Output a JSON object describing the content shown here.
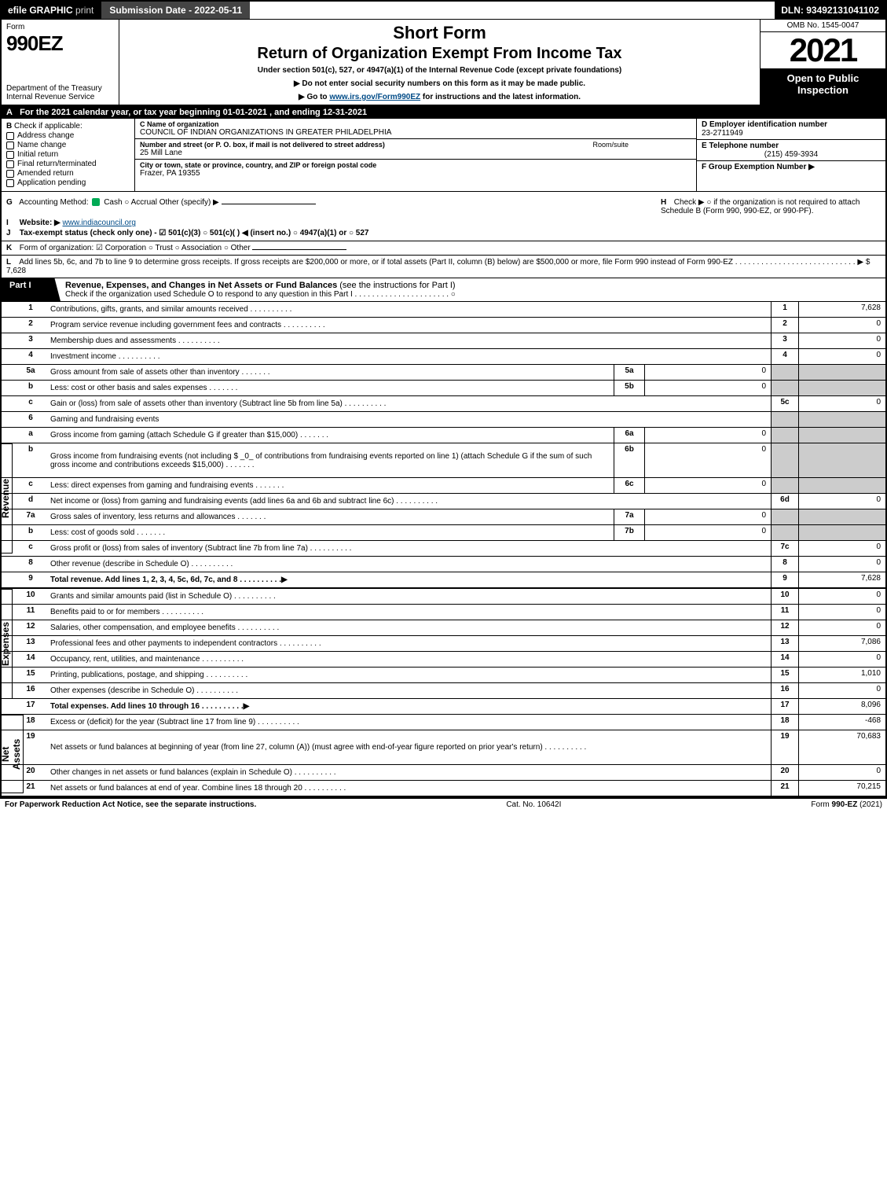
{
  "topbar": {
    "efile": "efile GRAPHIC",
    "print": "print",
    "submission": "Submission Date - 2022-05-11",
    "dln": "DLN: 93492131041102"
  },
  "header": {
    "form_label": "Form",
    "form_num": "990EZ",
    "dept": "Department of the Treasury\nInternal Revenue Service",
    "short_form": "Short Form",
    "return_title": "Return of Organization Exempt From Income Tax",
    "under_section": "Under section 501(c), 527, or 4947(a)(1) of the Internal Revenue Code (except private foundations)",
    "note1": "Do not enter social security numbers on this form as it may be made public.",
    "note2_pre": "Go to ",
    "note2_link": "www.irs.gov/Form990EZ",
    "note2_post": " for instructions and the latest information.",
    "omb": "OMB No. 1545-0047",
    "year": "2021",
    "open": "Open to Public Inspection"
  },
  "section_a": "For the 2021 calendar year, or tax year beginning 01-01-2021 , and ending 12-31-2021",
  "col_b": {
    "header": "Check if applicable:",
    "items": [
      "Address change",
      "Name change",
      "Initial return",
      "Final return/terminated",
      "Amended return",
      "Application pending"
    ]
  },
  "col_c": {
    "name_label": "C Name of organization",
    "name": "COUNCIL OF INDIAN ORGANIZATIONS IN GREATER PHILADELPHIA",
    "street_label": "Number and street (or P. O. box, if mail is not delivered to street address)",
    "room_label": "Room/suite",
    "street": "25 Mill Lane",
    "city_label": "City or town, state or province, country, and ZIP or foreign postal code",
    "city": "Frazer, PA  19355"
  },
  "col_d": {
    "ein_label": "D Employer identification number",
    "ein": "23-2711949",
    "phone_label": "E Telephone number",
    "phone": "(215) 459-3934",
    "group_label": "F Group Exemption Number  ▶"
  },
  "meta": {
    "g": "Accounting Method:",
    "g_opts": "Cash   ○ Accrual   Other (specify) ▶",
    "h": "Check ▶  ○  if the organization is not required to attach Schedule B (Form 990, 990-EZ, or 990-PF).",
    "i_label": "Website: ▶",
    "i_val": "www.indiacouncil.org",
    "j": "Tax-exempt status (check only one) -  ☑ 501(c)(3)  ○ 501(c)(  ) ◀ (insert no.)  ○ 4947(a)(1) or  ○ 527"
  },
  "line_k": "Form of organization:  ☑ Corporation  ○ Trust  ○ Association  ○ Other",
  "line_l": "Add lines 5b, 6c, and 7b to line 9 to determine gross receipts. If gross receipts are $200,000 or more, or if total assets (Part II, column (B) below) are $500,000 or more, file Form 990 instead of Form 990-EZ .  .  .  .  .  .  .  .  .  .  .  .  .  .  .  .  .  .  .  .  .  .  .  .  .  .  .  .  ▶ $ 7,628",
  "part1": {
    "tab": "Part I",
    "title": "Revenue, Expenses, and Changes in Net Assets or Fund Balances",
    "sub": "(see the instructions for Part I)",
    "check": "Check if the organization used Schedule O to respond to any question in this Part I .  .  .  .  .  .  .  .  .  .  .  .  .  .  .  .  .  .  .  .  .  . ○"
  },
  "revenue": [
    {
      "n": "1",
      "desc": "Contributions, gifts, grants, and similar amounts received",
      "rn": "1",
      "rv": "7,628"
    },
    {
      "n": "2",
      "desc": "Program service revenue including government fees and contracts",
      "rn": "2",
      "rv": "0"
    },
    {
      "n": "3",
      "desc": "Membership dues and assessments",
      "rn": "3",
      "rv": "0"
    },
    {
      "n": "4",
      "desc": "Investment income",
      "rn": "4",
      "rv": "0"
    },
    {
      "n": "5a",
      "desc": "Gross amount from sale of assets other than inventory",
      "sb": "5a",
      "sv": "0",
      "grey": true
    },
    {
      "n": "b",
      "desc": "Less: cost or other basis and sales expenses",
      "sb": "5b",
      "sv": "0",
      "grey": true
    },
    {
      "n": "c",
      "desc": "Gain or (loss) from sale of assets other than inventory (Subtract line 5b from line 5a)",
      "rn": "5c",
      "rv": "0"
    },
    {
      "n": "6",
      "desc": "Gaming and fundraising events",
      "grey": true
    },
    {
      "n": "a",
      "desc": "Gross income from gaming (attach Schedule G if greater than $15,000)",
      "sb": "6a",
      "sv": "0",
      "grey": true
    },
    {
      "n": "b",
      "desc": "Gross income from fundraising events (not including $ _0_ of contributions from fundraising events reported on line 1) (attach Schedule G if the sum of such gross income and contributions exceeds $15,000)",
      "sb": "6b",
      "sv": "0",
      "grey": true,
      "tall": true
    },
    {
      "n": "c",
      "desc": "Less: direct expenses from gaming and fundraising events",
      "sb": "6c",
      "sv": "0",
      "grey": true
    },
    {
      "n": "d",
      "desc": "Net income or (loss) from gaming and fundraising events (add lines 6a and 6b and subtract line 6c)",
      "rn": "6d",
      "rv": "0"
    },
    {
      "n": "7a",
      "desc": "Gross sales of inventory, less returns and allowances",
      "sb": "7a",
      "sv": "0",
      "grey": true
    },
    {
      "n": "b",
      "desc": "Less: cost of goods sold",
      "sb": "7b",
      "sv": "0",
      "grey": true
    },
    {
      "n": "c",
      "desc": "Gross profit or (loss) from sales of inventory (Subtract line 7b from line 7a)",
      "rn": "7c",
      "rv": "0"
    },
    {
      "n": "8",
      "desc": "Other revenue (describe in Schedule O)",
      "rn": "8",
      "rv": "0"
    },
    {
      "n": "9",
      "desc": "Total revenue. Add lines 1, 2, 3, 4, 5c, 6d, 7c, and 8",
      "rn": "9",
      "rv": "7,628",
      "bold": true,
      "arrow": true
    }
  ],
  "expenses": [
    {
      "n": "10",
      "desc": "Grants and similar amounts paid (list in Schedule O)",
      "rn": "10",
      "rv": "0"
    },
    {
      "n": "11",
      "desc": "Benefits paid to or for members",
      "rn": "11",
      "rv": "0"
    },
    {
      "n": "12",
      "desc": "Salaries, other compensation, and employee benefits",
      "rn": "12",
      "rv": "0"
    },
    {
      "n": "13",
      "desc": "Professional fees and other payments to independent contractors",
      "rn": "13",
      "rv": "7,086"
    },
    {
      "n": "14",
      "desc": "Occupancy, rent, utilities, and maintenance",
      "rn": "14",
      "rv": "0"
    },
    {
      "n": "15",
      "desc": "Printing, publications, postage, and shipping",
      "rn": "15",
      "rv": "1,010"
    },
    {
      "n": "16",
      "desc": "Other expenses (describe in Schedule O)",
      "rn": "16",
      "rv": "0"
    },
    {
      "n": "17",
      "desc": "Total expenses. Add lines 10 through 16",
      "rn": "17",
      "rv": "8,096",
      "bold": true,
      "arrow": true
    }
  ],
  "netassets": [
    {
      "n": "18",
      "desc": "Excess or (deficit) for the year (Subtract line 17 from line 9)",
      "rn": "18",
      "rv": "-468"
    },
    {
      "n": "19",
      "desc": "Net assets or fund balances at beginning of year (from line 27, column (A)) (must agree with end-of-year figure reported on prior year's return)",
      "rn": "19",
      "rv": "70,683",
      "tall": true
    },
    {
      "n": "20",
      "desc": "Other changes in net assets or fund balances (explain in Schedule O)",
      "rn": "20",
      "rv": "0"
    },
    {
      "n": "21",
      "desc": "Net assets or fund balances at end of year. Combine lines 18 through 20",
      "rn": "21",
      "rv": "70,215"
    }
  ],
  "labels": {
    "revenue": "Revenue",
    "expenses": "Expenses",
    "netassets": "Net Assets"
  },
  "footer": {
    "left": "For Paperwork Reduction Act Notice, see the separate instructions.",
    "mid": "Cat. No. 10642I",
    "right": "Form 990-EZ (2021)"
  }
}
